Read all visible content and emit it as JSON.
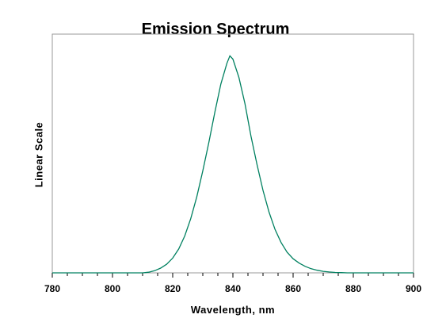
{
  "chart_data": {
    "type": "line",
    "title": "Emission Spectrum",
    "xlabel": "Wavelength, nm",
    "ylabel": "Linear Scale",
    "xlim": [
      780,
      900
    ],
    "ylim": [
      0,
      1.1
    ],
    "x_ticks": [
      "780",
      "800",
      "820",
      "840",
      "860",
      "880",
      "900"
    ],
    "grid": false,
    "series": [
      {
        "color": "#008060",
        "x": [
          780,
          800,
          810,
          812,
          814,
          816,
          818,
          820,
          822,
          824,
          826,
          828,
          830,
          832,
          834,
          836,
          838,
          839,
          840,
          842,
          844,
          846,
          848,
          850,
          852,
          854,
          856,
          858,
          860,
          862,
          864,
          866,
          868,
          870,
          872,
          874,
          876,
          878,
          880,
          890,
          900
        ],
        "y": [
          0,
          0,
          0,
          0.003,
          0.01,
          0.022,
          0.04,
          0.068,
          0.11,
          0.17,
          0.25,
          0.35,
          0.47,
          0.6,
          0.74,
          0.87,
          0.965,
          1.0,
          0.985,
          0.9,
          0.78,
          0.63,
          0.5,
          0.38,
          0.28,
          0.2,
          0.14,
          0.095,
          0.065,
          0.045,
          0.03,
          0.019,
          0.012,
          0.007,
          0.004,
          0.002,
          0.001,
          0,
          0,
          0,
          0
        ]
      }
    ]
  }
}
